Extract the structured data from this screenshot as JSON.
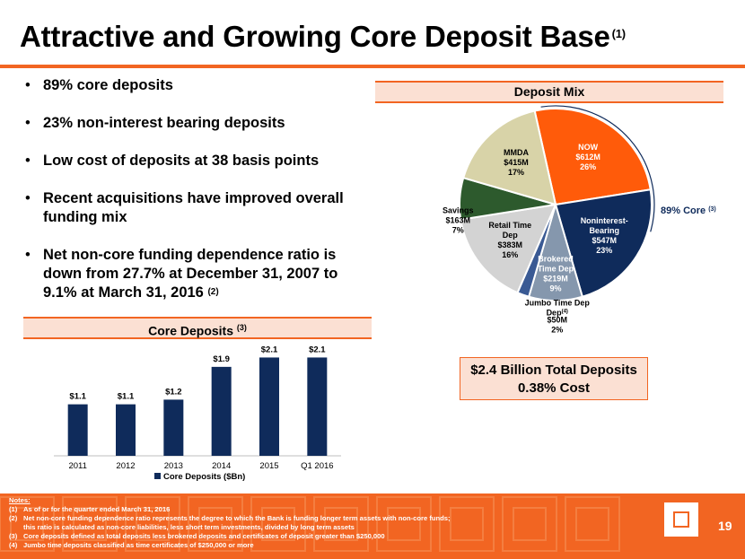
{
  "title": {
    "text": "Attractive and Growing Core Deposit Base",
    "note": "(1)"
  },
  "bullets": [
    {
      "text": "89% core deposits"
    },
    {
      "text": "23% non-interest bearing deposits"
    },
    {
      "text": "Low cost of deposits at 38 basis points"
    },
    {
      "text": "Recent acquisitions have improved overall funding mix"
    },
    {
      "text": "Net non-core funding dependence ratio is down from 27.7% at December 31, 2007 to 9.1% at March 31, 2016",
      "note": "(2)"
    }
  ],
  "deposit_mix_header": "Deposit Mix",
  "core_deposits_header": {
    "text": "Core Deposits",
    "note": "(3)"
  },
  "total_box": {
    "line1": "$2.4 Billion Total Deposits",
    "line2": "0.38% Cost"
  },
  "core_label": {
    "text": "89% Core",
    "note": "(3)"
  },
  "colors": {
    "accent": "#f26522",
    "navy": "#0f2b5b",
    "header_fill": "#fbe0d3"
  },
  "chart_data": [
    {
      "type": "pie",
      "title": "Deposit Mix",
      "slices": [
        {
          "name": "NOW",
          "amount": "$612M",
          "pct": "26%",
          "value": 26,
          "color": "#ff5b0a",
          "text_color": "#ffffff"
        },
        {
          "name": "Noninterest-Bearing",
          "amount": "$547M",
          "pct": "23%",
          "value": 23,
          "color": "#0f2b5b",
          "text_color": "#ffffff"
        },
        {
          "name": "Brokered Time Dep",
          "amount": "$219M",
          "pct": "9%",
          "value": 9,
          "color": "#8597ad",
          "text_color": "#ffffff"
        },
        {
          "name": "Jumbo Time Dep",
          "note": "(4)",
          "amount": "$50M",
          "pct": "2%",
          "value": 2,
          "color": "#3a5a94",
          "text_color": "#000000"
        },
        {
          "name": "Retail Time Dep",
          "amount": "$383M",
          "pct": "16%",
          "value": 16,
          "color": "#d3d3d3",
          "text_color": "#000000"
        },
        {
          "name": "Savings",
          "amount": "$163M",
          "pct": "7%",
          "value": 7,
          "color": "#2d5a2d",
          "text_color": "#000000"
        },
        {
          "name": "MMDA",
          "amount": "$415M",
          "pct": "17%",
          "value": 17,
          "color": "#d8d3a8",
          "text_color": "#000000"
        }
      ]
    },
    {
      "type": "bar",
      "title": "Core Deposits",
      "categories": [
        "2011",
        "2012",
        "2013",
        "2014",
        "2015",
        "Q1 2016"
      ],
      "values": [
        1.1,
        1.1,
        1.2,
        1.9,
        2.1,
        2.1
      ],
      "labels": [
        "$1.1",
        "$1.1",
        "$1.2",
        "$1.9",
        "$2.1",
        "$2.1"
      ],
      "ylim": [
        0,
        2.3
      ],
      "legend": "Core Deposits ($Bn)",
      "legend_position": "bottom",
      "color": "#0f2b5b"
    }
  ],
  "notes": {
    "header": "Notes:",
    "items": [
      {
        "num": "(1)",
        "text": "As of or for the quarter ended March 31, 2016"
      },
      {
        "num": "(2)",
        "text": "Net non-core funding dependence ratio represents the degree to which the Bank is funding longer term assets with non-core funds;"
      },
      {
        "num": "",
        "text": "this ratio is calculated as non-core liabilities, less short term investments, divided by long term assets"
      },
      {
        "num": "(3)",
        "text": "Core deposits defined as total deposits less brokered deposits and certificates of deposit greater than $250,000"
      },
      {
        "num": "(4)",
        "text": "Jumbo time deposits classified as time certificates of $250,000 or more"
      }
    ]
  },
  "page_number": "19"
}
